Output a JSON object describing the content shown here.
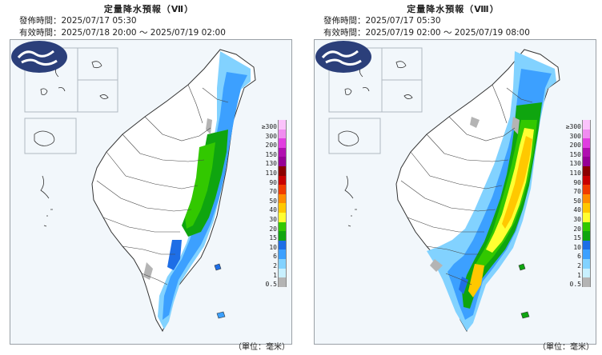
{
  "panels": [
    {
      "title": "定量降水預報（Ⅶ）",
      "issue_time": "發佈時間：2025/07/17 05:30",
      "valid_time": "有效時間：2025/07/18 20:00 ～ 2025/07/19 02:00",
      "unit": "（單位：毫米）"
    },
    {
      "title": "定量降水預報（Ⅷ）",
      "issue_time": "發佈時間：2025/07/17 05:30",
      "valid_time": "有效時間：2025/07/19 02:00 ～ 2025/07/19 08:00",
      "unit": "（單位：毫米）"
    }
  ],
  "legend": {
    "levels": [
      "≥300",
      "300",
      "200",
      "150",
      "130",
      "110",
      "90",
      "70",
      "50",
      "40",
      "30",
      "20",
      "15",
      "10",
      "6",
      "2",
      "1",
      "0.5"
    ],
    "colors": [
      "#fbc3fb",
      "#f08cf0",
      "#e03ee0",
      "#b00fb0",
      "#960096",
      "#8b0000",
      "#c80000",
      "#f03c00",
      "#ff8c00",
      "#ffc800",
      "#ffff32",
      "#32c800",
      "#0fa50f",
      "#1e6ee6",
      "#3ca0ff",
      "#82d2ff",
      "#c8f0ff",
      "#b4b4b4"
    ]
  },
  "colors": {
    "light": "#c8f0ff",
    "sky": "#82d2ff",
    "blue": "#3ca0ff",
    "deep": "#1e6ee6",
    "green": "#0fa50f",
    "lime": "#32c800",
    "yellow": "#ffff32",
    "gold": "#ffc800",
    "grey": "#b4b4b4",
    "logo": "#2b3f7a"
  }
}
